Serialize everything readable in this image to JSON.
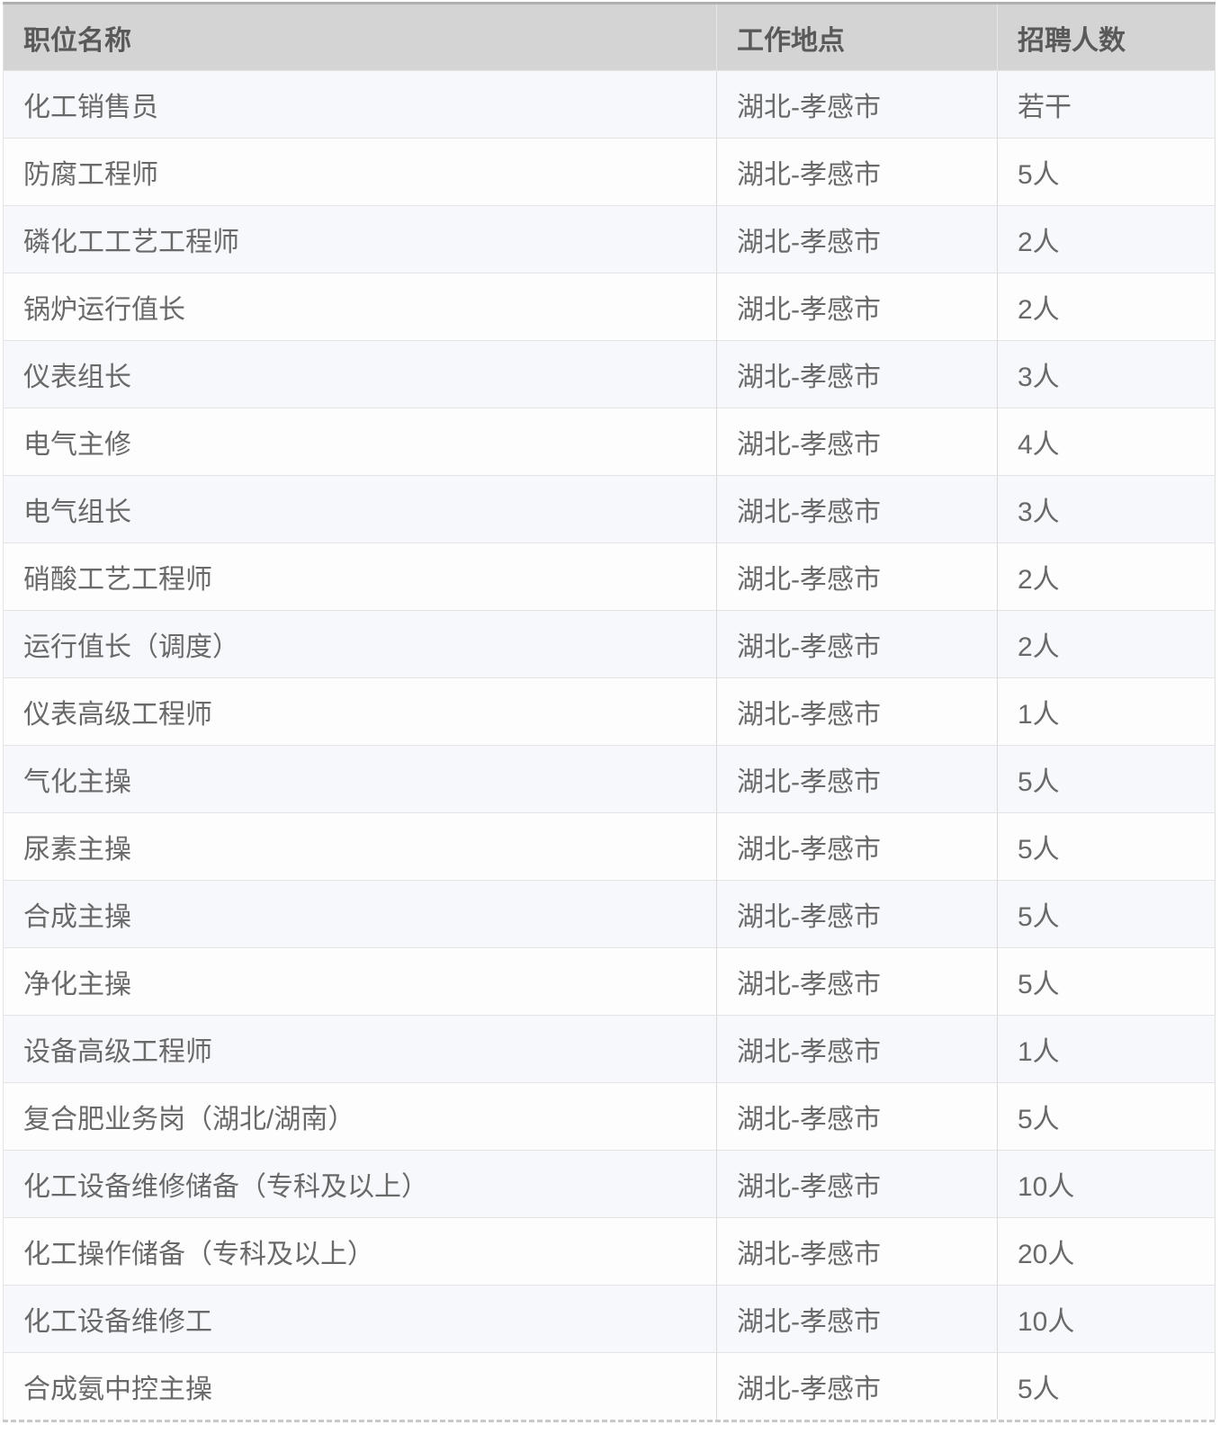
{
  "table": {
    "columns": [
      {
        "label": "职位名称"
      },
      {
        "label": "工作地点"
      },
      {
        "label": "招聘人数"
      }
    ],
    "rows": [
      {
        "position": "化工销售员",
        "location": "湖北-孝感市",
        "headcount": "若干"
      },
      {
        "position": "防腐工程师",
        "location": "湖北-孝感市",
        "headcount": "5人"
      },
      {
        "position": "磷化工工艺工程师",
        "location": "湖北-孝感市",
        "headcount": "2人"
      },
      {
        "position": "锅炉运行值长",
        "location": "湖北-孝感市",
        "headcount": "2人"
      },
      {
        "position": "仪表组长",
        "location": "湖北-孝感市",
        "headcount": "3人"
      },
      {
        "position": "电气主修",
        "location": "湖北-孝感市",
        "headcount": "4人"
      },
      {
        "position": "电气组长",
        "location": "湖北-孝感市",
        "headcount": "3人"
      },
      {
        "position": "硝酸工艺工程师",
        "location": "湖北-孝感市",
        "headcount": "2人"
      },
      {
        "position": "运行值长（调度）",
        "location": "湖北-孝感市",
        "headcount": "2人"
      },
      {
        "position": "仪表高级工程师",
        "location": "湖北-孝感市",
        "headcount": "1人"
      },
      {
        "position": "气化主操",
        "location": "湖北-孝感市",
        "headcount": "5人"
      },
      {
        "position": "尿素主操",
        "location": "湖北-孝感市",
        "headcount": "5人"
      },
      {
        "position": "合成主操",
        "location": "湖北-孝感市",
        "headcount": "5人"
      },
      {
        "position": "净化主操",
        "location": "湖北-孝感市",
        "headcount": "5人"
      },
      {
        "position": "设备高级工程师",
        "location": "湖北-孝感市",
        "headcount": "1人"
      },
      {
        "position": "复合肥业务岗（湖北/湖南）",
        "location": "湖北-孝感市",
        "headcount": "5人"
      },
      {
        "position": "化工设备维修储备（专科及以上）",
        "location": "湖北-孝感市",
        "headcount": "10人"
      },
      {
        "position": "化工操作储备（专科及以上）",
        "location": "湖北-孝感市",
        "headcount": "20人"
      },
      {
        "position": "化工设备维修工",
        "location": "湖北-孝感市",
        "headcount": "10人"
      },
      {
        "position": "合成氨中控主操",
        "location": "湖北-孝感市",
        "headcount": "5人"
      }
    ]
  },
  "colors": {
    "header_bg": "#d4d4d4",
    "header_text": "#595959",
    "body_text": "#696969",
    "row_odd_bg": "#f7f8fc",
    "row_even_bg": "#fdfdfe",
    "row_border": "#e4e4e7",
    "column_border": "#d9d9d9",
    "table_top_border": "#b0b0b0",
    "bottom_dashed_border": "#c9c9c9"
  }
}
